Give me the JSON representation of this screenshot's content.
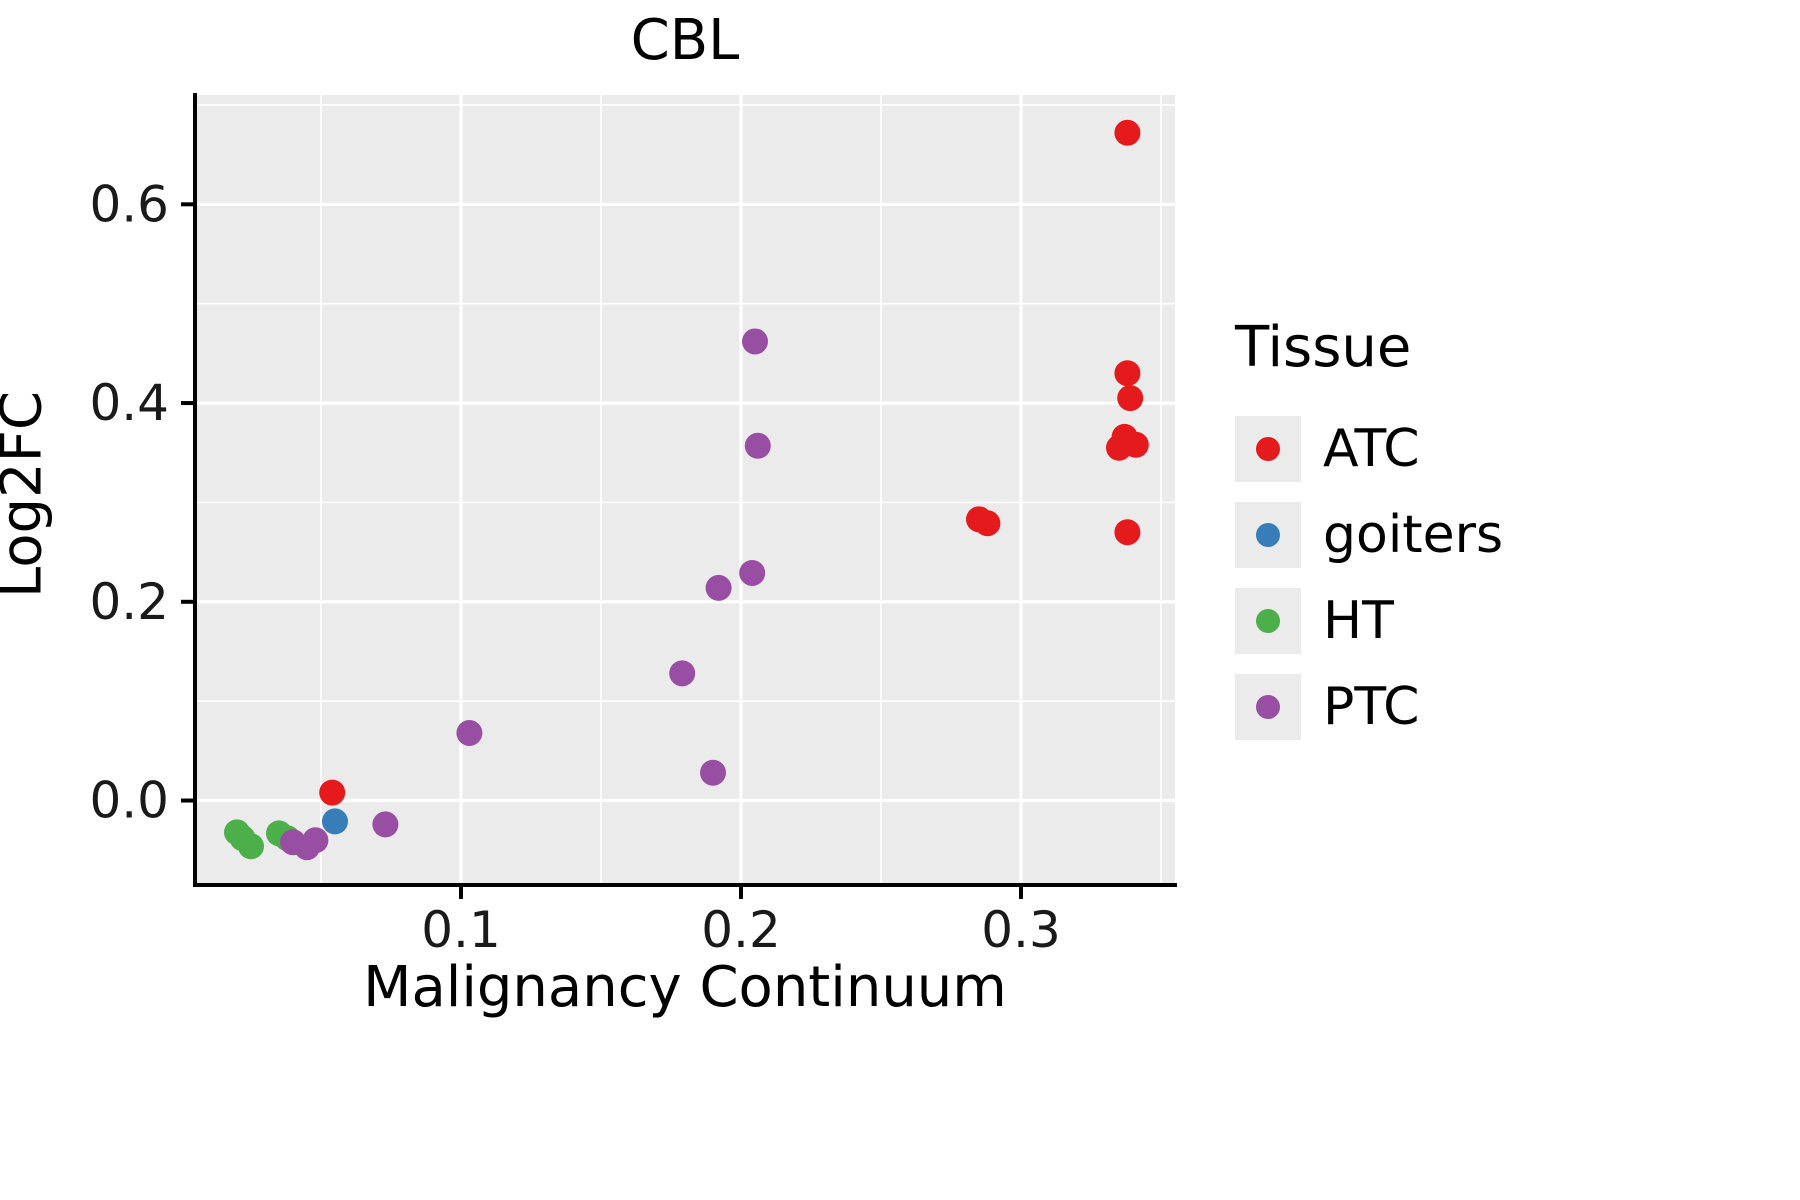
{
  "chart_data": {
    "type": "scatter",
    "title": "CBL",
    "xlabel": "Malignancy Continuum",
    "ylabel": "Log2FC",
    "legend_title": "Tissue",
    "xlim": [
      0.005,
      0.355
    ],
    "ylim": [
      -0.085,
      0.71
    ],
    "xticks": {
      "values": [
        0.1,
        0.2,
        0.3
      ],
      "labels": [
        "0.1",
        "0.2",
        "0.3"
      ]
    },
    "yticks": {
      "values": [
        0.0,
        0.2,
        0.4,
        0.6
      ],
      "labels": [
        "0.0",
        "0.2",
        "0.4",
        "0.6"
      ]
    },
    "xticks_minor": [
      0.05,
      0.15,
      0.25,
      0.35
    ],
    "yticks_minor": [
      0.1,
      0.3,
      0.5,
      0.7
    ],
    "panel_bg": "#EBEBEB",
    "grid_color": "#FFFFFF",
    "axis_color": "#000000",
    "point_radius": 13,
    "series": [
      {
        "name": "ATC",
        "color": "#E41A1C",
        "points": [
          [
            0.054,
            0.008
          ],
          [
            0.285,
            0.283
          ],
          [
            0.288,
            0.279
          ],
          [
            0.338,
            0.672
          ],
          [
            0.338,
            0.43
          ],
          [
            0.339,
            0.405
          ],
          [
            0.337,
            0.366
          ],
          [
            0.341,
            0.358
          ],
          [
            0.335,
            0.355
          ],
          [
            0.338,
            0.27
          ]
        ]
      },
      {
        "name": "goiters",
        "color": "#377EB8",
        "points": [
          [
            0.055,
            -0.021
          ]
        ]
      },
      {
        "name": "HT",
        "color": "#4DAF4A",
        "points": [
          [
            0.02,
            -0.032
          ],
          [
            0.022,
            -0.038
          ],
          [
            0.025,
            -0.046
          ],
          [
            0.035,
            -0.033
          ],
          [
            0.038,
            -0.038
          ]
        ]
      },
      {
        "name": "PTC",
        "color": "#984EA3",
        "points": [
          [
            0.04,
            -0.042
          ],
          [
            0.045,
            -0.047
          ],
          [
            0.048,
            -0.04
          ],
          [
            0.073,
            -0.024
          ],
          [
            0.103,
            0.068
          ],
          [
            0.179,
            0.128
          ],
          [
            0.19,
            0.028
          ],
          [
            0.192,
            0.214
          ],
          [
            0.204,
            0.229
          ],
          [
            0.206,
            0.357
          ],
          [
            0.205,
            0.462
          ]
        ]
      }
    ]
  }
}
